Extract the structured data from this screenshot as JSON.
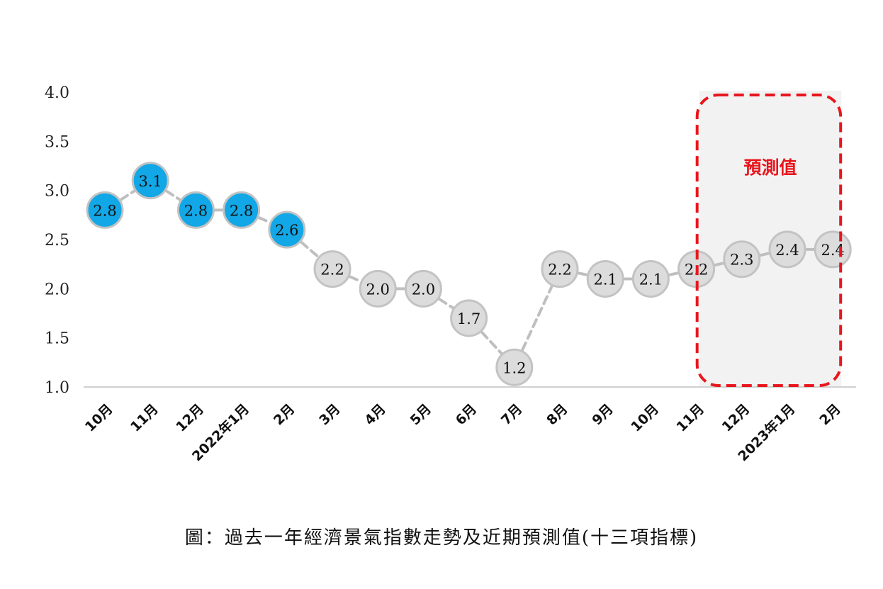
{
  "chart_data": {
    "type": "line",
    "categories": [
      "10月",
      "11月",
      "12月",
      "2022年1月",
      "2月",
      "3月",
      "4月",
      "5月",
      "6月",
      "7月",
      "8月",
      "9月",
      "10月",
      "11月",
      "12月",
      "2023年1月",
      "2月"
    ],
    "values": [
      2.8,
      3.1,
      2.8,
      2.8,
      2.6,
      2.2,
      2.0,
      2.0,
      1.7,
      1.2,
      2.2,
      2.1,
      2.1,
      2.2,
      2.3,
      2.4,
      2.4
    ],
    "data_labels": [
      "2.8",
      "3.1",
      "2.8",
      "2.8",
      "2.6",
      "2.2",
      "2.0",
      "2.0",
      "1.7",
      "1.2",
      "2.2",
      "2.1",
      "2.1",
      "2.2",
      "2.3",
      "2.4",
      "2.4"
    ],
    "highlighted_count": 5,
    "forecast_start_index": 14,
    "forecast_label": "預測值",
    "ylim": [
      1.0,
      4.0
    ],
    "yticks": [
      "1.0",
      "1.5",
      "2.0",
      "2.5",
      "3.0",
      "3.5",
      "4.0"
    ],
    "grid": false,
    "legend": "none",
    "colors": {
      "highlight_fill": "#12a7e6",
      "normal_fill": "#dcdcdc",
      "marker_stroke": "#c3c3c3",
      "line": "#bfbfbf",
      "forecast_border": "#e8161d",
      "forecast_text": "#e8161d",
      "forecast_bg": "#f2f2f2"
    }
  },
  "caption": "圖：過去一年經濟景氣指數走勢及近期預測值(十三項指標)"
}
